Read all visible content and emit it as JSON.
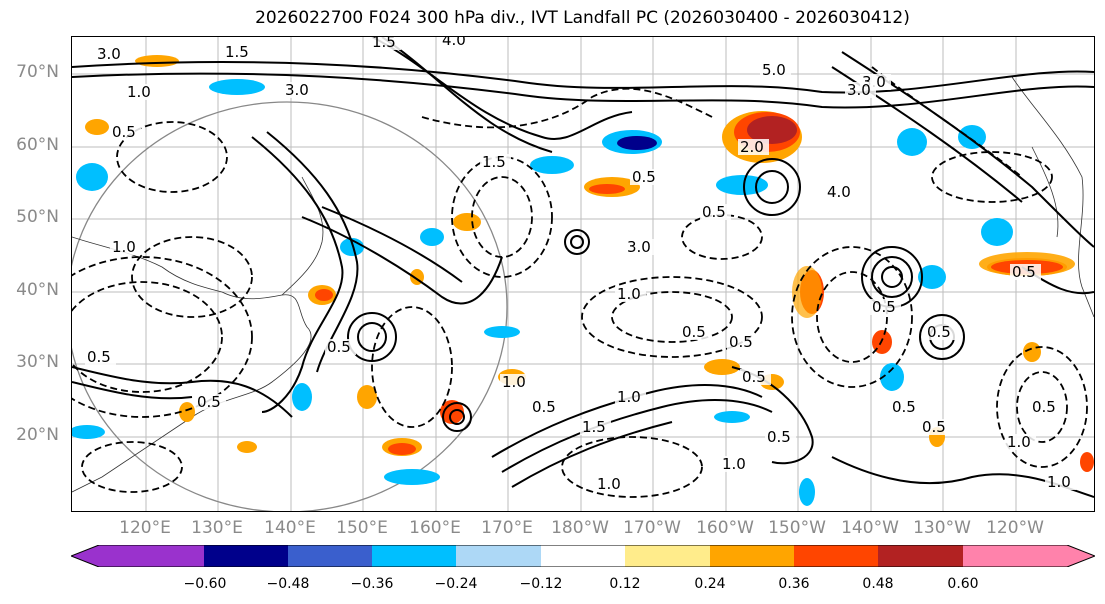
{
  "title": "2026022700 F024 300 hPa div., IVT Landfall PC (2026030400 - 2026030412)",
  "lat_labels": [
    "70°N",
    "60°N",
    "50°N",
    "40°N",
    "30°N",
    "20°N"
  ],
  "lon_labels": [
    "120°E",
    "130°E",
    "140°E",
    "150°E",
    "160°E",
    "170°E",
    "180°W",
    "170°W",
    "160°W",
    "150°W",
    "140°W",
    "130°W",
    "120°W"
  ],
  "colorbar": {
    "ticks": [
      "−0.60",
      "−0.48",
      "−0.36",
      "−0.24",
      "−0.12",
      "0.12",
      "0.24",
      "0.36",
      "0.48",
      "0.60"
    ],
    "colors": [
      "#9a32cd",
      "#00008b",
      "#3a5fcd",
      "#00bfff",
      "#add8f6",
      "#ffffff",
      "#ffec8b",
      "#ffa500",
      "#ff4500",
      "#b22222",
      "#ff82ab"
    ]
  },
  "contour_labels": [
    "3.0",
    "1.5",
    "3.0",
    "1.5",
    "3.0",
    "1.0",
    "0.5",
    "4.0",
    "5.0",
    "3.0",
    "1.5",
    "0.5",
    "1.0",
    "2.0",
    "0.5",
    "3.0",
    "1.0",
    "0.5",
    "0.5",
    "0.5",
    "1.0",
    "0.5",
    "0.5",
    "0.5",
    "1.5",
    "0.5",
    "1.0",
    "4.0",
    "0.5",
    "0.5",
    "1.0",
    "0.5",
    "1.0",
    "0.5",
    "1.0",
    "0.5",
    "0.5",
    "0.5",
    "1.0"
  ]
}
